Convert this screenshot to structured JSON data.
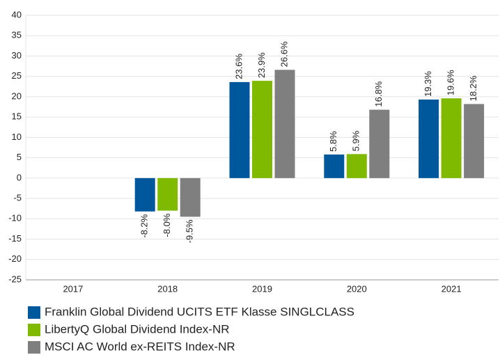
{
  "chart_data": {
    "type": "bar",
    "categories": [
      "2017",
      "2018",
      "2019",
      "2020",
      "2021"
    ],
    "series": [
      {
        "name": "Franklin Global Dividend UCITS ETF Klasse SINGLCLASS",
        "color": "#00589c",
        "values": [
          null,
          -8.2,
          23.6,
          5.8,
          19.3
        ],
        "value_labels": [
          null,
          "-8.2%",
          "23.6%",
          "5.8%",
          "19.3%"
        ]
      },
      {
        "name": "LibertyQ Global Dividend Index-NR",
        "color": "#7fba00",
        "values": [
          null,
          -8.0,
          23.9,
          5.9,
          19.6
        ],
        "value_labels": [
          null,
          "-8.0%",
          "23.9%",
          "5.9%",
          "19.6%"
        ]
      },
      {
        "name": "MSCI AC World ex-REITS Index-NR",
        "color": "#7f7f7f",
        "values": [
          null,
          -9.5,
          26.6,
          16.8,
          18.2
        ],
        "value_labels": [
          null,
          "-9.5%",
          "26.6%",
          "16.8%",
          "18.2%"
        ]
      }
    ],
    "ylim": [
      -25,
      40
    ],
    "yticks": [
      -25,
      -20,
      -15,
      -10,
      -5,
      0,
      5,
      10,
      15,
      20,
      25,
      30,
      35,
      40
    ],
    "grid": true,
    "legend": "bottom"
  }
}
